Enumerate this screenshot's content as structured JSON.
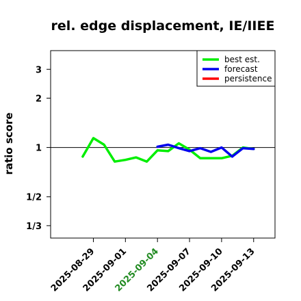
{
  "chart_data": {
    "type": "line",
    "title": "rel. edge displacement, IE/IIEE",
    "xlabel": "",
    "ylabel": "ratio score",
    "y_scale": "log",
    "ylim": [
      0.28,
      3.9
    ],
    "xlim": [
      "2025-08-25",
      "2025-09-15"
    ],
    "y_ticks": [
      {
        "value": 0.3333,
        "label": "1/3"
      },
      {
        "value": 0.5,
        "label": "1/2"
      },
      {
        "value": 1,
        "label": "1"
      },
      {
        "value": 2,
        "label": "2"
      },
      {
        "value": 3,
        "label": "3"
      }
    ],
    "x_ticks": [
      {
        "date": "2025-08-29",
        "label": "2025-08-29",
        "color": "#000000"
      },
      {
        "date": "2025-09-01",
        "label": "2025-09-01",
        "color": "#000000"
      },
      {
        "date": "2025-09-04",
        "label": "2025-09-04",
        "color": "#228b22"
      },
      {
        "date": "2025-09-07",
        "label": "2025-09-07",
        "color": "#000000"
      },
      {
        "date": "2025-09-10",
        "label": "2025-09-10",
        "color": "#000000"
      },
      {
        "date": "2025-09-13",
        "label": "2025-09-13",
        "color": "#000000"
      }
    ],
    "reference_line": 1,
    "legend_position": "top-right",
    "series": [
      {
        "name": "best est.",
        "color": "#00ee00",
        "x": [
          "2025-08-28",
          "2025-08-29",
          "2025-08-30",
          "2025-08-31",
          "2025-09-01",
          "2025-09-02",
          "2025-09-03",
          "2025-09-04",
          "2025-09-05",
          "2025-09-06",
          "2025-09-07",
          "2025-09-08",
          "2025-09-09",
          "2025-09-10",
          "2025-09-11",
          "2025-09-12",
          "2025-09-13"
        ],
        "values": [
          0.88,
          1.14,
          1.04,
          0.82,
          0.84,
          0.87,
          0.82,
          0.96,
          0.95,
          1.06,
          0.97,
          0.86,
          0.86,
          0.86,
          0.89,
          1.0,
          0.98
        ]
      },
      {
        "name": "forecast",
        "color": "#0000ee",
        "x": [
          "2025-09-04",
          "2025-09-05",
          "2025-09-06",
          "2025-09-07",
          "2025-09-08",
          "2025-09-09",
          "2025-09-10",
          "2025-09-11",
          "2025-09-12",
          "2025-09-13"
        ],
        "values": [
          1.01,
          1.04,
          0.99,
          0.95,
          0.99,
          0.94,
          1.0,
          0.88,
          0.99,
          0.98
        ]
      },
      {
        "name": "persistence",
        "color": "#ff0000",
        "x": [],
        "values": []
      }
    ]
  }
}
